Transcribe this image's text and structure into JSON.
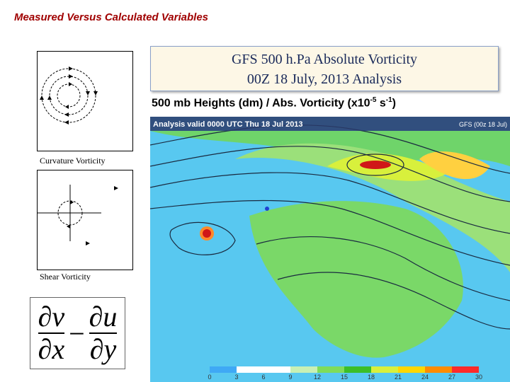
{
  "header": {
    "title": "Measured Versus Calculated Variables"
  },
  "panels": {
    "curvature_label": "Curvature Vorticity",
    "shear_label": "Shear Vorticity"
  },
  "equation": {
    "numerator_left": "∂v",
    "denominator_left": "∂x",
    "operator": "−",
    "numerator_right": "∂u",
    "denominator_right": "∂y"
  },
  "map": {
    "title_lines": [
      "GFS 500 h.Pa Absolute Vorticity",
      "00Z 18 July, 2013 Analysis"
    ],
    "header": {
      "text": "500 mb Heights (dm) / Abs. Vorticity (x10",
      "exp1": "-5",
      "unit": " s",
      "exp2": "-1",
      "close": ")"
    },
    "valid_text": "Analysis valid 0000 UTC Thu 18 Jul 2013",
    "model_text": "GFS (00z 18 Jul)",
    "colorbar": {
      "labels": [
        0,
        3,
        6,
        9,
        12,
        15,
        18,
        21,
        24,
        27,
        30
      ],
      "colors": [
        "#3fa9f5",
        "#ffffff",
        "#ffffff",
        "#c8f0b4",
        "#7fdc5a",
        "#3cbe28",
        "#d8f03c",
        "#ffd700",
        "#ff8c00",
        "#ff2a2a"
      ]
    }
  }
}
